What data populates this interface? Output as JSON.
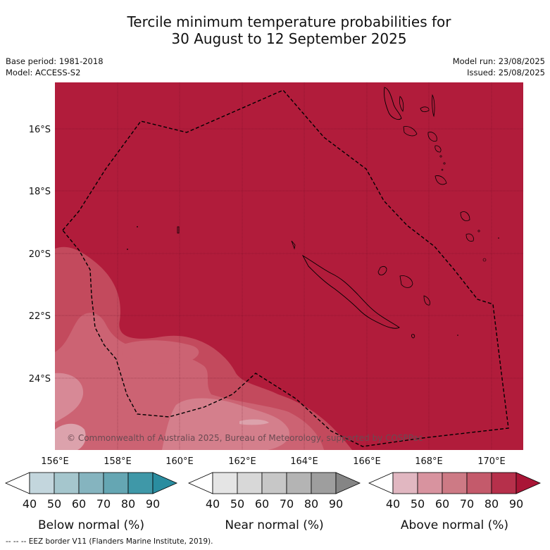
{
  "title": {
    "line1": "Tercile minimum temperature probabilities for",
    "line2": "30 August to 12 September 2025"
  },
  "meta": {
    "base_period": "Base period: 1981-2018",
    "model": "Model: ACCESS-S2",
    "model_run": "Model run: 23/08/2025",
    "issued": "Issued: 25/08/2025"
  },
  "map": {
    "lat_labels": [
      "16°S",
      "18°S",
      "20°S",
      "22°S",
      "24°S"
    ],
    "lon_labels": [
      "156°E",
      "158°E",
      "160°E",
      "162°E",
      "164°E",
      "166°E",
      "168°E",
      "170°E"
    ],
    "copyright": "© Commonwealth of Australia 2025, Bureau of Meteorology, supported by COSPPac",
    "dominant_category": "Above normal",
    "dominant_probability_range": "80-90%",
    "background_color": "#b11c3b"
  },
  "colorbars": [
    {
      "title": "Below normal (%)",
      "ticks": [
        "40",
        "50",
        "60",
        "70",
        "80",
        "90"
      ],
      "colors": [
        "#c3d6dd",
        "#a5c6cd",
        "#85b4bf",
        "#65a6b3",
        "#3f98a8",
        "#2a8da0"
      ]
    },
    {
      "title": "Near normal (%)",
      "ticks": [
        "40",
        "50",
        "60",
        "70",
        "80",
        "90"
      ],
      "colors": [
        "#e5e5e5",
        "#d8d8d8",
        "#c7c7c7",
        "#b4b4b4",
        "#9e9e9e",
        "#858585"
      ]
    },
    {
      "title": "Above normal (%)",
      "ticks": [
        "40",
        "50",
        "60",
        "70",
        "80",
        "90"
      ],
      "colors": [
        "#e1b7c1",
        "#d8939f",
        "#cd7a85",
        "#c45a6b",
        "#b6304b",
        "#a91536"
      ]
    }
  ],
  "footer": "--  --  -- EEZ border V11 (Flanders Marine Institute, 2019)."
}
